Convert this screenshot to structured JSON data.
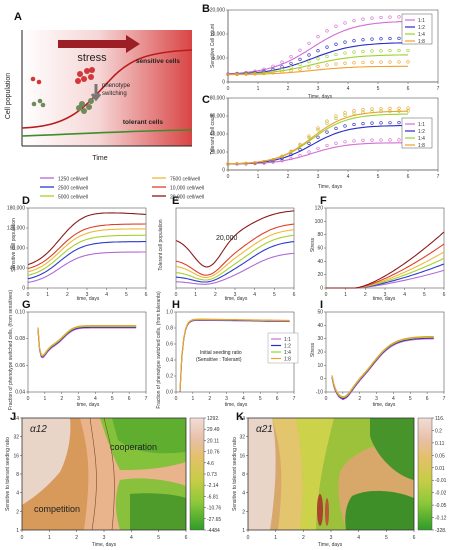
{
  "panels": [
    "A",
    "B",
    "C",
    "D",
    "E",
    "F",
    "G",
    "H",
    "I",
    "J",
    "K"
  ],
  "colors": {
    "c11": "#d36cd6",
    "c12": "#2a2ac8",
    "c14": "#9bd12d",
    "c18": "#f0a030",
    "c1250": "#b06ad8",
    "c2500": "#2b3ad0",
    "c5000": "#a6d22c",
    "c7500": "#f0b83a",
    "c10000": "#e0402a",
    "c20000": "#8b1a1a"
  },
  "panel_a": {
    "stress": "stress",
    "sensitive": "sensitive cells",
    "tolerant": "tolerant  cells",
    "switching1": "phenotype",
    "switching2": "switching",
    "ylabel": "Cell population",
    "xlabel": "Time"
  },
  "panel_b": {
    "ylabel": "Sensitive Cell count",
    "xlabel": "Time, days",
    "legend": [
      "1:1",
      "1:2",
      "1:4",
      "1:8"
    ],
    "yticks": [
      "0",
      "5,000",
      "10,000",
      "20,000"
    ],
    "xticks": [
      "0",
      "1",
      "2",
      "3",
      "4",
      "5",
      "6",
      "7"
    ]
  },
  "panel_c": {
    "ylabel": "Tolerant Cell count",
    "xlabel": "Time, days",
    "legend": [
      "1:1",
      "1:2",
      "1:4",
      "1:8"
    ],
    "yticks": [
      "0",
      "20,000",
      "40,000",
      "60,000",
      "80,000"
    ],
    "xticks": [
      "0",
      "1",
      "2",
      "3",
      "4",
      "5",
      "6",
      "7"
    ]
  },
  "density_legend": [
    "1250 cell/well",
    "2500 cell/well",
    "5000 cell/well",
    "7500 cell/well",
    "10,000 cell/well",
    "20,000 cell/well"
  ],
  "panel_d": {
    "ylabel": "Sensitive cell population",
    "xlabel": "time, days",
    "yticks": [
      "0",
      "45,000",
      "90,000",
      "135,000",
      "180,000"
    ],
    "xticks": [
      "0",
      "1",
      "2",
      "3",
      "4",
      "5",
      "6"
    ]
  },
  "panel_e": {
    "ylabel": "Tolerant cell population",
    "xlabel": "time, days",
    "annotation": "20,000",
    "xticks": [
      "0",
      "1",
      "2",
      "3",
      "4",
      "5",
      "6"
    ]
  },
  "panel_f": {
    "ylabel": "Stress",
    "xlabel": "time, days",
    "yticks": [
      "0",
      "20",
      "40",
      "60",
      "80",
      "100",
      "120"
    ],
    "xticks": [
      "0",
      "1",
      "2",
      "3",
      "4",
      "5",
      "6"
    ]
  },
  "panel_g": {
    "ylabel": "Fraction of phenotype switched cells, (from sensitives)",
    "xlabel": "time, days",
    "yticks": [
      "0.04",
      "0.06",
      "0.08",
      "0.10"
    ],
    "xticks": [
      "0",
      "1",
      "2",
      "3",
      "4",
      "5",
      "6",
      "7"
    ]
  },
  "panel_h": {
    "ylabel": "Fraction of phenotype switched cells, (from tolerants)",
    "xlabel": "time, days",
    "legend": [
      "1:1",
      "1:2",
      "1:4",
      "1:8"
    ],
    "annotation1": "Initial seeding ratio",
    "annotation2": "(Sensitive : Tolerant)",
    "yticks": [
      "0.0",
      "0.2",
      "0.4",
      "0.6",
      "0.8",
      "1.0"
    ],
    "xticks": [
      "0",
      "1",
      "2",
      "3",
      "4",
      "5",
      "6",
      "7"
    ]
  },
  "panel_i": {
    "ylabel": "Stress",
    "xlabel": "time, days",
    "yticks": [
      "-10",
      "0",
      "10",
      "20",
      "30",
      "40",
      "50"
    ],
    "xticks": [
      "0",
      "1",
      "2",
      "3",
      "4",
      "5",
      "6",
      "7"
    ]
  },
  "panel_j": {
    "alpha": "α12",
    "cooperation": "cooperation",
    "competition": "competition",
    "ylabel": "Sensitive to tolerant seeding ratio",
    "xlabel": "Time, days",
    "yticks": [
      "1",
      "2",
      "4",
      "8",
      "16",
      "32",
      "64"
    ],
    "xticks": [
      "0",
      "1",
      "2",
      "3",
      "4",
      "5",
      "6"
    ],
    "colorbar": [
      "1292.",
      "29.49",
      "20.11",
      "10.76",
      "4.6",
      "0.73",
      "-2.14",
      "-6.81",
      "-10.76",
      "-27.65",
      "-4484"
    ]
  },
  "panel_k": {
    "alpha": "α21",
    "ylabel": "Sensitive to tolerant seeding ratio",
    "xlabel": "Time, days",
    "yticks": [
      "1",
      "2",
      "4",
      "8",
      "16",
      "32",
      "64"
    ],
    "xticks": [
      "0",
      "1",
      "2",
      "3",
      "4",
      "5",
      "6"
    ],
    "colorbar": [
      "116.",
      "0.2",
      "0.11",
      "0.05",
      "0.01",
      "-0.01",
      "-0.02",
      "-0.05",
      "-0.12",
      "-328."
    ]
  }
}
